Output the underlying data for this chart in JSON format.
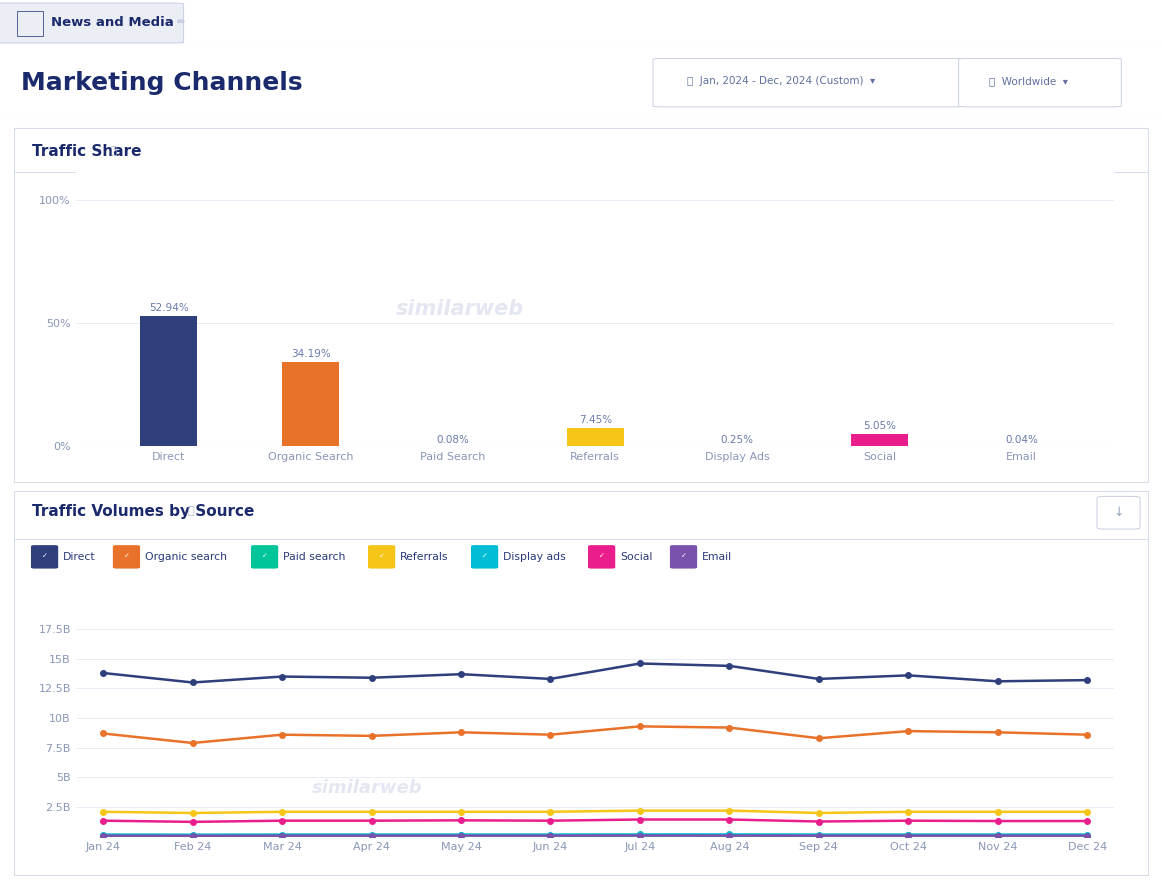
{
  "page_title": "News and Media",
  "main_title": "Marketing Channels",
  "date_range": "Jan, 2024 - Dec, 2024 (Custom)",
  "region": "Worldwide",
  "section1_title": "Traffic Share",
  "section2_title": "Traffic Volumes by Source",
  "bar_categories": [
    "Direct",
    "Organic Search",
    "Paid Search",
    "Referrals",
    "Display Ads",
    "Social",
    "Email"
  ],
  "bar_values": [
    52.94,
    34.19,
    0.08,
    7.45,
    0.25,
    5.05,
    0.04
  ],
  "bar_colors": [
    "#2e3f7c",
    "#e8722a",
    "#00c49a",
    "#f5c518",
    "#00bcd4",
    "#e91e8c",
    "#7b52ab"
  ],
  "bar_labels": [
    "52.94%",
    "34.19%",
    "0.08%",
    "7.45%",
    "0.25%",
    "5.05%",
    "0.04%"
  ],
  "months": [
    "Jan 24",
    "Feb 24",
    "Mar 24",
    "Apr 24",
    "May 24",
    "Jun 24",
    "Jul 24",
    "Aug 24",
    "Sep 24",
    "Oct 24",
    "Nov 24",
    "Dec 24"
  ],
  "line_series": {
    "Direct": [
      13.8,
      13.0,
      13.5,
      13.4,
      13.7,
      13.3,
      14.6,
      14.4,
      13.3,
      13.6,
      13.1,
      13.2
    ],
    "Organic search": [
      8.7,
      7.9,
      8.6,
      8.5,
      8.8,
      8.6,
      9.3,
      9.2,
      8.3,
      8.9,
      8.8,
      8.6
    ],
    "Paid search": [
      0.1,
      0.09,
      0.1,
      0.1,
      0.11,
      0.1,
      0.11,
      0.11,
      0.1,
      0.11,
      0.1,
      0.1
    ],
    "Referrals": [
      2.1,
      2.0,
      2.1,
      2.1,
      2.1,
      2.1,
      2.2,
      2.2,
      2.0,
      2.1,
      2.1,
      2.1
    ],
    "Display ads": [
      0.18,
      0.17,
      0.18,
      0.18,
      0.18,
      0.18,
      0.19,
      0.19,
      0.18,
      0.18,
      0.18,
      0.18
    ],
    "Social": [
      1.35,
      1.25,
      1.35,
      1.35,
      1.38,
      1.35,
      1.45,
      1.45,
      1.28,
      1.35,
      1.32,
      1.32
    ],
    "Email": [
      0.09,
      0.08,
      0.09,
      0.09,
      0.09,
      0.09,
      0.1,
      0.09,
      0.09,
      0.09,
      0.09,
      0.09
    ]
  },
  "line_colors": {
    "Direct": "#2e3f7c",
    "Organic search": "#e8722a",
    "Paid search": "#00c49a",
    "Referrals": "#f5c518",
    "Display ads": "#00bcd4",
    "Social": "#e91e8c",
    "Email": "#7b52ab"
  },
  "yticks_line": [
    0,
    2.5,
    5.0,
    7.5,
    10.0,
    12.5,
    15.0,
    17.5
  ],
  "ytick_labels_line": [
    "",
    "2.5B",
    "5B",
    "7.5B",
    "10B",
    "12.5B",
    "15B",
    "17.5B"
  ],
  "background_color": "#ffffff",
  "panel_border_color": "#d8dce8",
  "grid_color": "#e8ecf4",
  "text_color": "#1a2a6c",
  "axis_label_color": "#8a96b8",
  "bar_label_color": "#6a7aaa",
  "separator_color": "#d0d8e8"
}
